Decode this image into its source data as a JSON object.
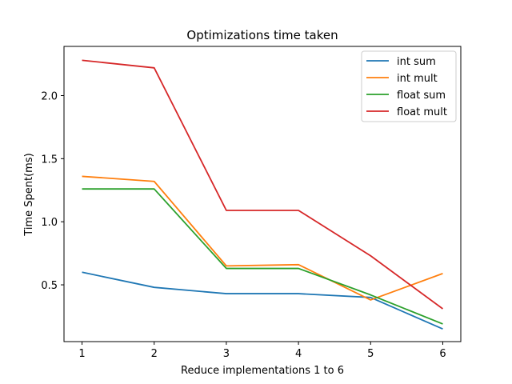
{
  "chart_data": {
    "type": "line",
    "title": "Optimizations time taken",
    "xlabel": "Reduce implementations 1 to 6",
    "ylabel": "Time Spent(ms)",
    "x": [
      1,
      2,
      3,
      4,
      5,
      6
    ],
    "x_ticks": [
      "1",
      "2",
      "3",
      "4",
      "5",
      "6"
    ],
    "y_ticks": [
      "0.5",
      "1.0",
      "1.5",
      "2.0"
    ],
    "y_tick_values": [
      0.5,
      1.0,
      1.5,
      2.0
    ],
    "xlim": [
      0.75,
      6.25
    ],
    "ylim": [
      0.05,
      2.39
    ],
    "grid": false,
    "legend_position": "top-right",
    "series": [
      {
        "name": "int sum",
        "color": "#1f77b4",
        "values": [
          0.6,
          0.48,
          0.43,
          0.43,
          0.4,
          0.15
        ]
      },
      {
        "name": "int mult",
        "color": "#ff7f0e",
        "values": [
          1.36,
          1.32,
          0.65,
          0.66,
          0.38,
          0.59
        ]
      },
      {
        "name": "float sum",
        "color": "#2ca02c",
        "values": [
          1.26,
          1.26,
          0.63,
          0.63,
          0.42,
          0.19
        ]
      },
      {
        "name": "float mult",
        "color": "#d62728",
        "values": [
          2.28,
          2.22,
          1.09,
          1.09,
          0.73,
          0.31
        ]
      }
    ]
  }
}
